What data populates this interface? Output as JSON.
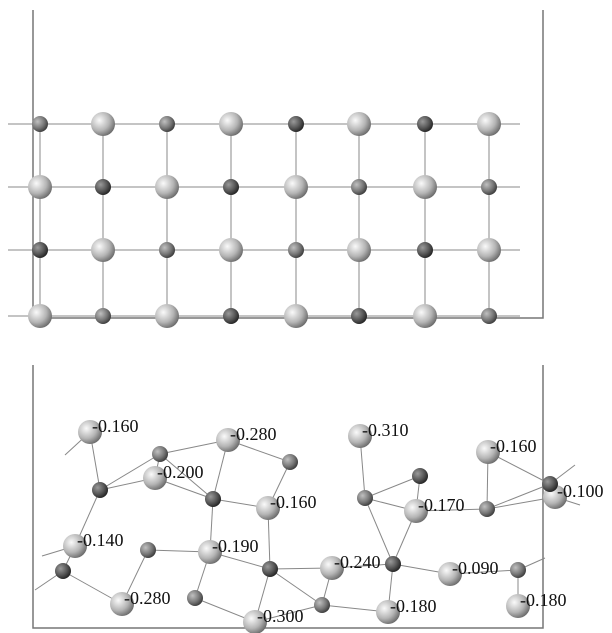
{
  "bottom_panel": {
    "labels": [
      "-0.160",
      "-0.280",
      "-0.310",
      "-0.160",
      "-0.200",
      "-0.100",
      "-0.160",
      "-0.170",
      "-0.140",
      "-0.190",
      "-0.240",
      "-0.090",
      "-0.280",
      "-0.300",
      "-0.180",
      "-0.180"
    ]
  }
}
